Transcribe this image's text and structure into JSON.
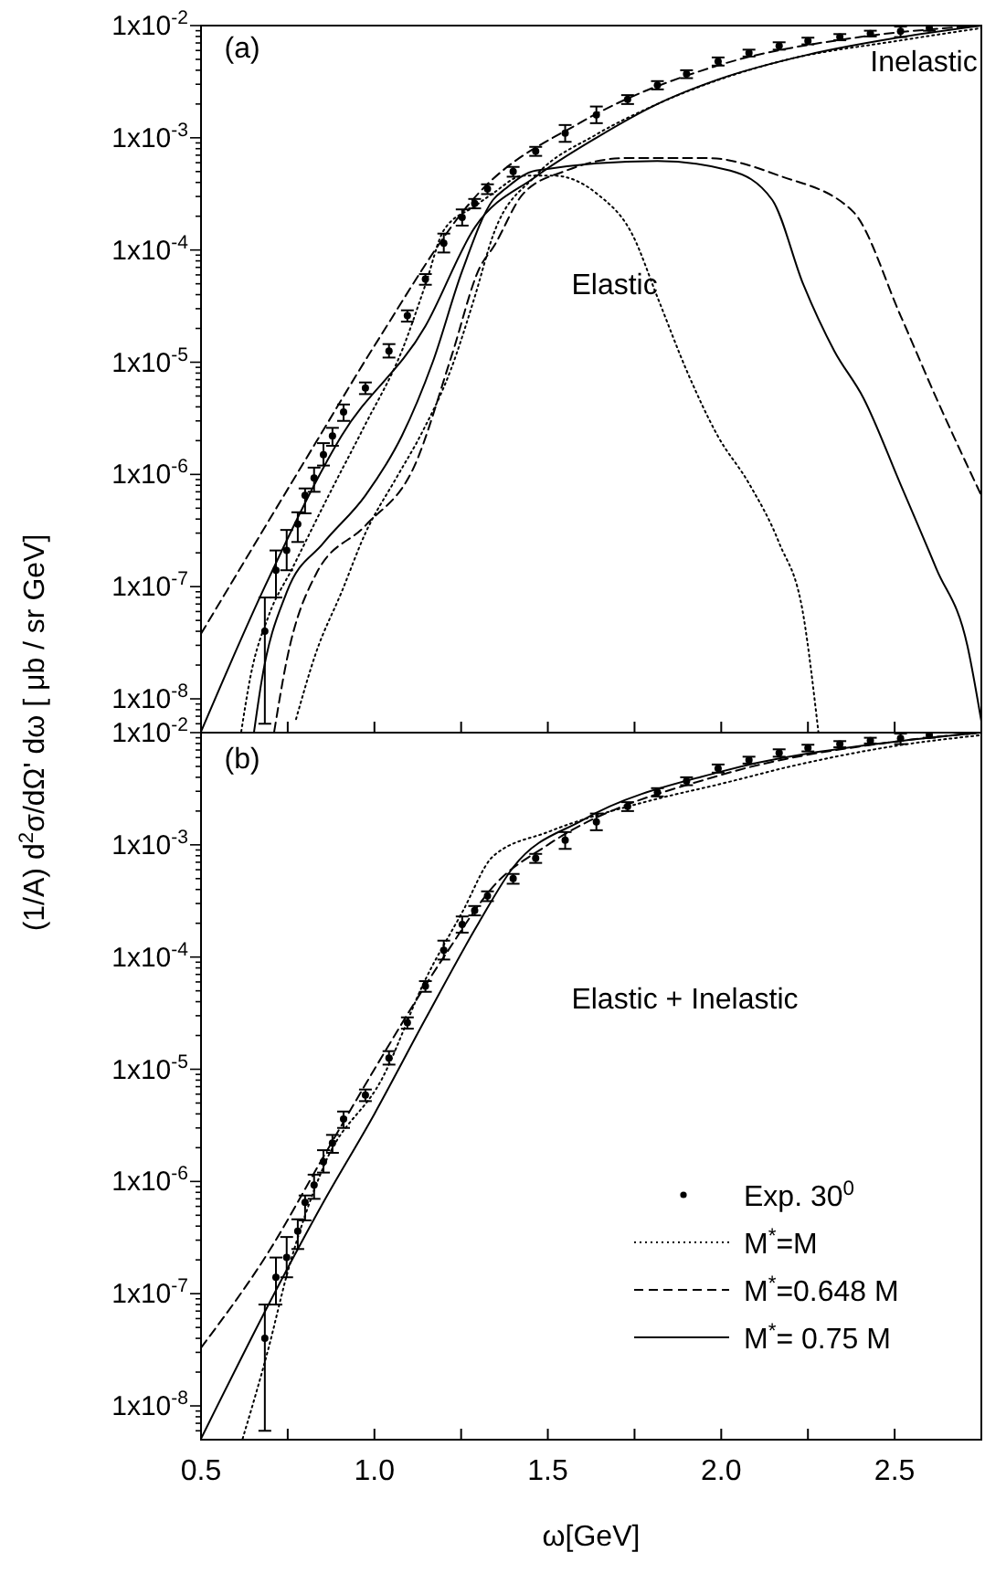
{
  "chart_data": [
    {
      "type": "line",
      "ylabel": "(1/A) d$^{2}$σ/dΩ' dω [ μb / sr GeV]",
      "annotations": [
        "(a)",
        "Inelastic",
        "Elastic"
      ],
      "log": "y",
      "tick_labels": "y",
      "xlim": [
        0.5,
        2.75
      ],
      "ylim": [
        5e-09,
        0.01
      ],
      "xticks": [
        {
          "value": 0.5,
          "label": null
        },
        {
          "value": 0.75,
          "label": null
        },
        {
          "value": 1,
          "label": null
        },
        {
          "value": 1.25,
          "label": null
        },
        {
          "value": 1.5,
          "label": null
        },
        {
          "value": 1.75,
          "label": null
        },
        {
          "value": 2,
          "label": null
        },
        {
          "value": 2.25,
          "label": null
        },
        {
          "value": 2.5,
          "label": null
        }
      ],
      "yticks": [
        {
          "value": 6e-09,
          "label": null
        },
        {
          "value": 7e-09,
          "label": null
        },
        {
          "value": 8e-09,
          "label": null
        },
        {
          "value": 9e-09,
          "label": null
        },
        {
          "value": 1e-08,
          "label": "1x10$^{-8}$"
        },
        {
          "value": 2e-08,
          "label": null
        },
        {
          "value": 3e-08,
          "label": null
        },
        {
          "value": 4e-08,
          "label": null
        },
        {
          "value": 5e-08,
          "label": null
        },
        {
          "value": 6e-08,
          "label": null
        },
        {
          "value": 7e-08,
          "label": null
        },
        {
          "value": 8e-08,
          "label": null
        },
        {
          "value": 9e-08,
          "label": null
        },
        {
          "value": 1e-07,
          "label": "1x10$^{-7}$"
        },
        {
          "value": 2e-07,
          "label": null
        },
        {
          "value": 3e-07,
          "label": null
        },
        {
          "value": 4e-07,
          "label": null
        },
        {
          "value": 5e-07,
          "label": null
        },
        {
          "value": 6e-07,
          "label": null
        },
        {
          "value": 7e-07,
          "label": null
        },
        {
          "value": 8e-07,
          "label": null
        },
        {
          "value": 9e-07,
          "label": null
        },
        {
          "value": 1e-06,
          "label": "1x10$^{-6}$"
        },
        {
          "value": 2e-06,
          "label": null
        },
        {
          "value": 3e-06,
          "label": null
        },
        {
          "value": 4e-06,
          "label": null
        },
        {
          "value": 5e-06,
          "label": null
        },
        {
          "value": 6e-06,
          "label": null
        },
        {
          "value": 7e-06,
          "label": null
        },
        {
          "value": 8e-06,
          "label": null
        },
        {
          "value": 9e-06,
          "label": null
        },
        {
          "value": 1e-05,
          "label": "1x10$^{-5}$"
        },
        {
          "value": 2e-05,
          "label": null
        },
        {
          "value": 3e-05,
          "label": null
        },
        {
          "value": 4e-05,
          "label": null
        },
        {
          "value": 5e-05,
          "label": null
        },
        {
          "value": 6e-05,
          "label": null
        },
        {
          "value": 7e-05,
          "label": null
        },
        {
          "value": 8e-05,
          "label": null
        },
        {
          "value": 9e-05,
          "label": null
        },
        {
          "value": 0.0001,
          "label": "1x10$^{-4}$"
        },
        {
          "value": 0.0002,
          "label": null
        },
        {
          "value": 0.0003,
          "label": null
        },
        {
          "value": 0.0004,
          "label": null
        },
        {
          "value": 0.0005,
          "label": null
        },
        {
          "value": 0.0006,
          "label": null
        },
        {
          "value": 0.0007,
          "label": null
        },
        {
          "value": 0.0008,
          "label": null
        },
        {
          "value": 0.0009,
          "label": null
        },
        {
          "value": 0.001,
          "label": "1x10$^{-3}$"
        },
        {
          "value": 0.002,
          "label": null
        },
        {
          "value": 0.003,
          "label": null
        },
        {
          "value": 0.004,
          "label": null
        },
        {
          "value": 0.005,
          "label": null
        },
        {
          "value": 0.006,
          "label": null
        },
        {
          "value": 0.007,
          "label": null
        },
        {
          "value": 0.008,
          "label": null
        },
        {
          "value": 0.009,
          "label": null
        },
        {
          "value": 0.01,
          "label": "1x10$^{-2}$"
        }
      ],
      "series": [
        {
          "type": "scatter",
          "color": "#000000",
          "x": [
            0.684,
            0.716,
            0.747,
            0.779,
            0.8,
            0.826,
            0.853,
            0.879,
            0.911,
            0.974,
            1.042,
            1.095,
            1.147,
            1.2,
            1.253,
            1.289,
            1.326,
            1.4,
            1.465,
            1.55,
            1.64,
            1.73,
            1.816,
            1.9,
            1.991,
            2.08,
            2.167,
            2.25,
            2.342,
            2.43,
            2.517,
            2.6
          ],
          "values": [
            4e-08,
            1.4e-07,
            2.1e-07,
            3.6e-07,
            6.5e-07,
            9.3e-07,
            1.5e-06,
            2.2e-06,
            3.6e-06,
            5.9e-06,
            1.26e-05,
            2.6e-05,
            5.5e-05,
            0.000115,
            0.000195,
            0.00026,
            0.00035,
            0.0005,
            0.00076,
            0.0011,
            0.0016,
            0.0022,
            0.00295,
            0.0037,
            0.0048,
            0.0057,
            0.0066,
            0.0073,
            0.0079,
            0.0085,
            0.0089,
            0.0095
          ],
          "errors": [
            [
              6e-09,
              8e-08
            ],
            [
              8e-08,
              2.1e-07
            ],
            [
              1.4e-07,
              3.2e-07
            ],
            [
              2.5e-07,
              4.6e-07
            ],
            [
              4.5e-07,
              7.5e-07
            ],
            [
              7e-07,
              1.15e-06
            ],
            [
              1.2e-06,
              1.9e-06
            ],
            [
              1.8e-06,
              2.6e-06
            ],
            [
              3e-06,
              4.2e-06
            ],
            [
              5.2e-06,
              6.6e-06
            ],
            [
              1.1e-05,
              1.45e-05
            ],
            [
              2.3e-05,
              2.9e-05
            ],
            [
              4.9e-05,
              6.1e-05
            ],
            [
              9.5e-05,
              0.00014
            ],
            [
              0.000165,
              0.00023
            ],
            [
              0.000235,
              0.000285
            ],
            [
              0.000315,
              0.000385
            ],
            [
              0.00045,
              0.00055
            ],
            [
              0.00069,
              0.00083
            ],
            [
              0.00092,
              0.0013
            ],
            [
              0.00135,
              0.0019
            ],
            [
              0.002,
              0.0024
            ],
            [
              0.0027,
              0.0032
            ],
            [
              0.0034,
              0.004
            ],
            [
              0.0044,
              0.0052
            ],
            [
              0.0053,
              0.0061
            ],
            [
              0.0061,
              0.0071
            ],
            [
              0.0068,
              0.0078
            ],
            [
              0.0074,
              0.0084
            ],
            [
              0.008,
              0.009
            ],
            [
              0.0079,
              0.0098
            ],
            [
              0.009,
              0.01
            ]
          ]
        },
        {
          "type": "line",
          "color": "#000000",
          "line_style": "dashed",
          "x": [
            0.5,
            0.83,
            1.0,
            1.3,
            1.6,
            2.0,
            2.4,
            2.75
          ],
          "values": [
            3.8e-08,
            1.9e-06,
            1.4e-05,
            0.00032,
            0.0014,
            0.0045,
            0.0079,
            0.01
          ]
        },
        {
          "type": "line",
          "color": "#000000",
          "line_style": "solid",
          "x": [
            0.5,
            0.684,
            0.905,
            1.147,
            1.29,
            1.465,
            1.64,
            1.816,
            1.99,
            2.25,
            2.52,
            2.75
          ],
          "values": [
            5.1e-09,
            1e-07,
            2.2e-06,
            2.1e-05,
            0.00016,
            0.00045,
            0.001,
            0.002,
            0.0033,
            0.0055,
            0.0079,
            0.01
          ]
        },
        {
          "type": "line",
          "color": "#000000",
          "line_style": "dotted",
          "x": [
            0.774,
            0.832,
            0.905,
            0.974,
            1.063,
            1.132,
            1.221,
            1.289,
            1.342,
            1.465,
            1.64,
            1.816,
            2.17,
            2.52,
            2.75
          ],
          "values": [
            6.6e-09,
            2.6e-08,
            8.9e-08,
            3e-07,
            9.3e-07,
            2.2e-06,
            8.7e-06,
            3.8e-05,
            0.000135,
            0.00046,
            0.00107,
            0.002,
            0.0048,
            0.0074,
            0.0095
          ]
        },
        {
          "type": "line",
          "color": "#000000",
          "line_style": "dotted",
          "x": [
            0.616,
            0.642,
            0.695,
            0.763,
            0.868,
            0.974,
            1.079,
            1.147,
            1.2,
            1.289,
            1.342,
            1.43,
            1.516,
            1.64,
            1.745,
            1.816,
            1.905,
            1.99,
            2.08,
            2.167,
            2.237,
            2.28
          ],
          "values": [
            5.1e-09,
            1.55e-08,
            5.5e-08,
            1.45e-07,
            6.5e-07,
            2.8e-06,
            1.26e-05,
            4.9e-05,
            0.00015,
            0.000245,
            0.00032,
            0.00046,
            0.00046,
            0.00032,
            0.000135,
            3.8e-05,
            7.8e-06,
            2.2e-06,
            8.3e-07,
            2.45e-07,
            5.5e-08,
            5.1e-09
          ]
        },
        {
          "type": "line",
          "color": "#000000",
          "line_style": "solid",
          "x": [
            0.653,
            0.674,
            0.747,
            0.853,
            0.974,
            1.079,
            1.168,
            1.253,
            1.342,
            1.377,
            1.465,
            1.816,
            2.026,
            2.147,
            2.237,
            2.326,
            2.41,
            2.516,
            2.62,
            2.71,
            2.75
          ],
          "values": [
            5.1e-09,
            1.4e-08,
            8.9e-08,
            2.45e-07,
            6.5e-07,
            2.2e-06,
            1e-05,
            6.5e-05,
            0.00028,
            0.00035,
            0.00051,
            0.00062,
            0.00051,
            0.00028,
            4.9e-05,
            1.26e-05,
            4.8e-06,
            8.3e-07,
            1.45e-07,
            2.95e-08,
            6.3e-09
          ]
        },
        {
          "type": "line",
          "color": "#000000",
          "line_style": "dashed",
          "x": [
            0.711,
            0.747,
            0.832,
            0.974,
            1.116,
            1.221,
            1.305,
            1.342,
            1.43,
            1.553,
            1.726,
            1.958,
            2.167,
            2.38,
            2.517,
            2.62,
            2.75
          ],
          "values": [
            5.1e-09,
            2.2e-08,
            1.3e-07,
            3.5e-07,
            1.2e-06,
            1.1e-05,
            7.1e-05,
            0.000105,
            0.00032,
            0.00051,
            0.00066,
            0.00066,
            0.00046,
            0.00022,
            2.6e-05,
            4.8e-06,
            6.5e-07
          ]
        }
      ]
    },
    {
      "type": "line",
      "xlabel": "ω[GeV]",
      "annotations": [
        "(b)",
        "Elastic + Inelastic"
      ],
      "log": "y",
      "legend": "bottom right",
      "xlim": [
        0.5,
        2.75
      ],
      "ylim": [
        5e-09,
        0.01
      ],
      "xticks": [
        0.5,
        {
          "value": 0.75,
          "label": null
        },
        {
          "value": 1,
          "label": "1.0"
        },
        {
          "value": 1.25,
          "label": null
        },
        1.5,
        {
          "value": 1.75,
          "label": null
        },
        {
          "value": 2,
          "label": "2.0"
        },
        {
          "value": 2.25,
          "label": null
        },
        2.5
      ],
      "yticks": [
        {
          "value": 6e-09,
          "label": null
        },
        {
          "value": 7e-09,
          "label": null
        },
        {
          "value": 8e-09,
          "label": null
        },
        {
          "value": 9e-09,
          "label": null
        },
        {
          "value": 1e-08,
          "label": "1x10$^{-8}$"
        },
        {
          "value": 2e-08,
          "label": null
        },
        {
          "value": 3e-08,
          "label": null
        },
        {
          "value": 4e-08,
          "label": null
        },
        {
          "value": 5e-08,
          "label": null
        },
        {
          "value": 6e-08,
          "label": null
        },
        {
          "value": 7e-08,
          "label": null
        },
        {
          "value": 8e-08,
          "label": null
        },
        {
          "value": 9e-08,
          "label": null
        },
        {
          "value": 1e-07,
          "label": "1x10$^{-7}$"
        },
        {
          "value": 2e-07,
          "label": null
        },
        {
          "value": 3e-07,
          "label": null
        },
        {
          "value": 4e-07,
          "label": null
        },
        {
          "value": 5e-07,
          "label": null
        },
        {
          "value": 6e-07,
          "label": null
        },
        {
          "value": 7e-07,
          "label": null
        },
        {
          "value": 8e-07,
          "label": null
        },
        {
          "value": 9e-07,
          "label": null
        },
        {
          "value": 1e-06,
          "label": "1x10$^{-6}$"
        },
        {
          "value": 2e-06,
          "label": null
        },
        {
          "value": 3e-06,
          "label": null
        },
        {
          "value": 4e-06,
          "label": null
        },
        {
          "value": 5e-06,
          "label": null
        },
        {
          "value": 6e-06,
          "label": null
        },
        {
          "value": 7e-06,
          "label": null
        },
        {
          "value": 8e-06,
          "label": null
        },
        {
          "value": 9e-06,
          "label": null
        },
        {
          "value": 1e-05,
          "label": "1x10$^{-5}$"
        },
        {
          "value": 2e-05,
          "label": null
        },
        {
          "value": 3e-05,
          "label": null
        },
        {
          "value": 4e-05,
          "label": null
        },
        {
          "value": 5e-05,
          "label": null
        },
        {
          "value": 6e-05,
          "label": null
        },
        {
          "value": 7e-05,
          "label": null
        },
        {
          "value": 8e-05,
          "label": null
        },
        {
          "value": 9e-05,
          "label": null
        },
        {
          "value": 0.0001,
          "label": "1x10$^{-4}$"
        },
        {
          "value": 0.0002,
          "label": null
        },
        {
          "value": 0.0003,
          "label": null
        },
        {
          "value": 0.0004,
          "label": null
        },
        {
          "value": 0.0005,
          "label": null
        },
        {
          "value": 0.0006,
          "label": null
        },
        {
          "value": 0.0007,
          "label": null
        },
        {
          "value": 0.0008,
          "label": null
        },
        {
          "value": 0.0009,
          "label": null
        },
        {
          "value": 0.001,
          "label": "1x10$^{-3}$"
        },
        {
          "value": 0.002,
          "label": null
        },
        {
          "value": 0.003,
          "label": null
        },
        {
          "value": 0.004,
          "label": null
        },
        {
          "value": 0.005,
          "label": null
        },
        {
          "value": 0.006,
          "label": null
        },
        {
          "value": 0.007,
          "label": null
        },
        {
          "value": 0.008,
          "label": null
        },
        {
          "value": 0.009,
          "label": null
        },
        {
          "value": 0.01,
          "label": "1x10$^{-2}$"
        }
      ],
      "series": [
        {
          "name": "Exp. 30$^{0}$",
          "type": "scatter",
          "color": "#000000",
          "x": [
            0.684,
            0.716,
            0.747,
            0.779,
            0.8,
            0.826,
            0.853,
            0.879,
            0.911,
            0.974,
            1.042,
            1.095,
            1.147,
            1.2,
            1.253,
            1.289,
            1.326,
            1.4,
            1.465,
            1.55,
            1.64,
            1.73,
            1.816,
            1.9,
            1.991,
            2.08,
            2.167,
            2.25,
            2.342,
            2.43,
            2.517,
            2.6
          ],
          "values": [
            4e-08,
            1.4e-07,
            2.1e-07,
            3.6e-07,
            6.5e-07,
            9.3e-07,
            1.5e-06,
            2.2e-06,
            3.6e-06,
            5.9e-06,
            1.26e-05,
            2.6e-05,
            5.5e-05,
            0.000115,
            0.000195,
            0.00026,
            0.00035,
            0.0005,
            0.00076,
            0.0011,
            0.0016,
            0.0022,
            0.00295,
            0.0037,
            0.0048,
            0.0057,
            0.0066,
            0.0073,
            0.0079,
            0.0085,
            0.0089,
            0.0095
          ],
          "errors": [
            [
              6e-09,
              8e-08
            ],
            [
              8e-08,
              2.1e-07
            ],
            [
              1.4e-07,
              3.2e-07
            ],
            [
              2.5e-07,
              4.6e-07
            ],
            [
              4.5e-07,
              7.5e-07
            ],
            [
              7e-07,
              1.15e-06
            ],
            [
              1.2e-06,
              1.9e-06
            ],
            [
              1.8e-06,
              2.6e-06
            ],
            [
              3e-06,
              4.2e-06
            ],
            [
              5.2e-06,
              6.6e-06
            ],
            [
              1.1e-05,
              1.45e-05
            ],
            [
              2.3e-05,
              2.9e-05
            ],
            [
              4.9e-05,
              6.1e-05
            ],
            [
              9.5e-05,
              0.00014
            ],
            [
              0.000165,
              0.00023
            ],
            [
              0.000235,
              0.000285
            ],
            [
              0.000315,
              0.000385
            ],
            [
              0.00045,
              0.00055
            ],
            [
              0.00069,
              0.00083
            ],
            [
              0.00092,
              0.0013
            ],
            [
              0.00135,
              0.0019
            ],
            [
              0.002,
              0.0024
            ],
            [
              0.0027,
              0.0032
            ],
            [
              0.0034,
              0.004
            ],
            [
              0.0044,
              0.0052
            ],
            [
              0.0053,
              0.0061
            ],
            [
              0.0061,
              0.0071
            ],
            [
              0.0068,
              0.0078
            ],
            [
              0.0074,
              0.0084
            ],
            [
              0.008,
              0.009
            ],
            [
              0.0079,
              0.0098
            ],
            [
              0.009,
              0.01
            ]
          ]
        },
        {
          "name": "M$^{*}$=M",
          "type": "line",
          "color": "#000000",
          "line_style": "dotted",
          "x": [
            0.62,
            0.695,
            0.747,
            0.853,
            1.026,
            1.147,
            1.253,
            1.342,
            1.5,
            1.8,
            2.0,
            2.2,
            2.5,
            2.75
          ],
          "values": [
            5.1e-09,
            3.3e-08,
            1.45e-07,
            1.35e-06,
            8.7e-06,
            6.3e-05,
            0.00025,
            0.00079,
            0.0013,
            0.0025,
            0.0035,
            0.005,
            0.0076,
            0.0095
          ]
        },
        {
          "name": "M$^{*}$=0.648 M",
          "type": "line",
          "color": "#000000",
          "line_style": "dashed",
          "x": [
            0.5,
            0.7,
            0.85,
            1.0,
            1.2,
            1.35,
            1.5,
            2.0,
            2.5,
            2.75
          ],
          "values": [
            3.3e-08,
            2.5e-07,
            1.6e-06,
            1e-05,
            0.0001,
            0.00045,
            0.001,
            0.0042,
            0.0083,
            0.01
          ]
        },
        {
          "name": "M$^{*}$= 0.75 M",
          "type": "line",
          "color": "#000000",
          "line_style": "solid",
          "x": [
            0.5,
            0.711,
            0.85,
            1.0,
            1.147,
            1.3,
            1.4,
            1.6,
            2.0,
            2.5,
            2.75
          ],
          "values": [
            5.1e-09,
            1e-07,
            6.3e-07,
            4e-06,
            2.8e-05,
            0.0002,
            0.00063,
            0.00166,
            0.0045,
            0.0083,
            0.01
          ]
        }
      ]
    }
  ]
}
